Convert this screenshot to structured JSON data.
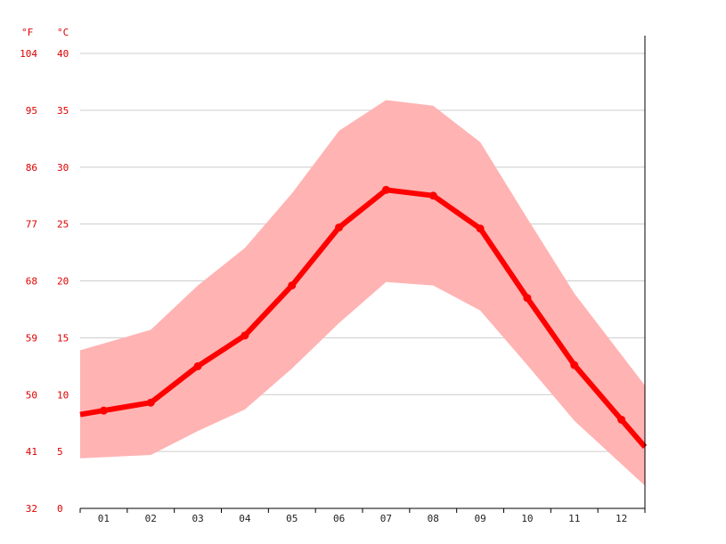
{
  "chart_data": {
    "type": "area",
    "title": "",
    "xlabel": "",
    "ylabel": "",
    "y_units": {
      "left": "°F",
      "right": "°C"
    },
    "categories": [
      "01",
      "02",
      "03",
      "04",
      "05",
      "06",
      "07",
      "08",
      "09",
      "10",
      "11",
      "12"
    ],
    "y_ticks_c": [
      "0",
      "5",
      "10",
      "15",
      "20",
      "25",
      "30",
      "35",
      "40"
    ],
    "y_ticks_f": [
      "32",
      "41",
      "50",
      "59",
      "68",
      "77",
      "86",
      "95",
      "104"
    ],
    "ylim_c": [
      0,
      40
    ],
    "series": [
      {
        "name": "",
        "kind": "line",
        "values": [
          8.6,
          9.3,
          12.5,
          15.2,
          19.6,
          24.7,
          28.0,
          27.5,
          24.6,
          18.5,
          12.6,
          7.8
        ]
      },
      {
        "name": "",
        "kind": "range-band",
        "low": [
          4.5,
          4.7,
          6.8,
          8.7,
          12.3,
          16.3,
          19.9,
          19.6,
          17.4,
          12.6,
          7.7,
          3.9
        ],
        "high": [
          14.5,
          15.7,
          19.6,
          22.9,
          27.7,
          33.2,
          35.9,
          35.4,
          32.2,
          25.5,
          18.9,
          13.5
        ]
      }
    ],
    "grid": true,
    "colors": {
      "line": "#ff0000",
      "band": "#ffb3b3",
      "tick_text": "#dd0000",
      "x_tick_text": "#222222",
      "grid": "#cccccc",
      "axis": "#000000"
    }
  }
}
